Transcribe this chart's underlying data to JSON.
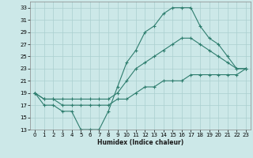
{
  "xlabel": "Humidex (Indice chaleur)",
  "bg_color": "#cce8e8",
  "grid_color": "#aacfcf",
  "line_color": "#2e7d6e",
  "xlim": [
    -0.5,
    23.5
  ],
  "ylim": [
    13,
    34
  ],
  "yticks": [
    13,
    15,
    17,
    19,
    21,
    23,
    25,
    27,
    29,
    31,
    33
  ],
  "xticks": [
    0,
    1,
    2,
    3,
    4,
    5,
    6,
    7,
    8,
    9,
    10,
    11,
    12,
    13,
    14,
    15,
    16,
    17,
    18,
    19,
    20,
    21,
    22,
    23
  ],
  "line1_x": [
    0,
    1,
    2,
    3,
    4,
    5,
    6,
    7,
    8,
    9,
    10,
    11,
    12,
    13,
    14,
    15,
    16,
    17,
    18,
    19,
    20,
    21,
    22,
    23
  ],
  "line1_y": [
    19,
    17,
    17,
    16,
    16,
    13,
    13,
    13,
    16,
    20,
    24,
    26,
    29,
    30,
    32,
    33,
    33,
    33,
    30,
    28,
    27,
    25,
    23,
    23
  ],
  "line2_x": [
    0,
    1,
    2,
    3,
    4,
    5,
    6,
    7,
    8,
    9,
    10,
    11,
    12,
    13,
    14,
    15,
    16,
    17,
    18,
    19,
    20,
    21,
    22,
    23
  ],
  "line2_y": [
    19,
    18,
    18,
    18,
    18,
    18,
    18,
    18,
    18,
    19,
    21,
    23,
    24,
    25,
    26,
    27,
    28,
    28,
    27,
    26,
    25,
    24,
    23,
    23
  ],
  "line3_x": [
    0,
    1,
    2,
    3,
    4,
    5,
    6,
    7,
    8,
    9,
    10,
    11,
    12,
    13,
    14,
    15,
    16,
    17,
    18,
    19,
    20,
    21,
    22,
    23
  ],
  "line3_y": [
    19,
    18,
    18,
    17,
    17,
    17,
    17,
    17,
    17,
    18,
    18,
    19,
    20,
    20,
    21,
    21,
    21,
    22,
    22,
    22,
    22,
    22,
    22,
    23
  ]
}
